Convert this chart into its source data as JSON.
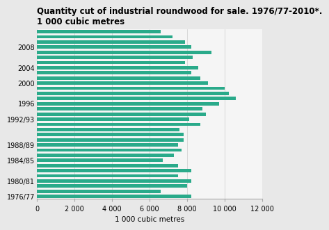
{
  "title_line1": "Quantity cut of industrial roundwood for sale. 1976/77-2010*.",
  "title_line2": "1 000 cubic metres",
  "xlabel": "1 000 cubic metres",
  "bar_color": "#2aaa8a",
  "background_color": "#e8e8e8",
  "plot_bg_color": "#f5f5f5",
  "xlim": [
    0,
    12000
  ],
  "xticks": [
    0,
    2000,
    4000,
    6000,
    8000,
    10000,
    12000
  ],
  "xtick_labels": [
    "0",
    "2 000",
    "4 000",
    "6 000",
    "8 000",
    "10 000",
    "12 000"
  ],
  "title_fontsize": 8.5,
  "axis_fontsize": 7.5,
  "tick_fontsize": 7,
  "years_labels": [
    "1976/77",
    "",
    "",
    "1980/81",
    "",
    "",
    "",
    "1984/85",
    "",
    "",
    "1988/89",
    "",
    "",
    "",
    "",
    "1992/93",
    "",
    "",
    "1996",
    "",
    "",
    "",
    "2000",
    "",
    "",
    "2004",
    "",
    "",
    "",
    "2008",
    "",
    "",
    ""
  ],
  "values": [
    6600,
    7200,
    7900,
    8200,
    9300,
    8300,
    7900,
    8600,
    8200,
    8700,
    9100,
    10000,
    10200,
    10600,
    9700,
    8800,
    9000,
    8100,
    8700,
    7600,
    7800,
    7800,
    7500,
    7700,
    7300,
    6700,
    7500,
    8200,
    7500,
    8200,
    8000,
    6600,
    8200
  ]
}
